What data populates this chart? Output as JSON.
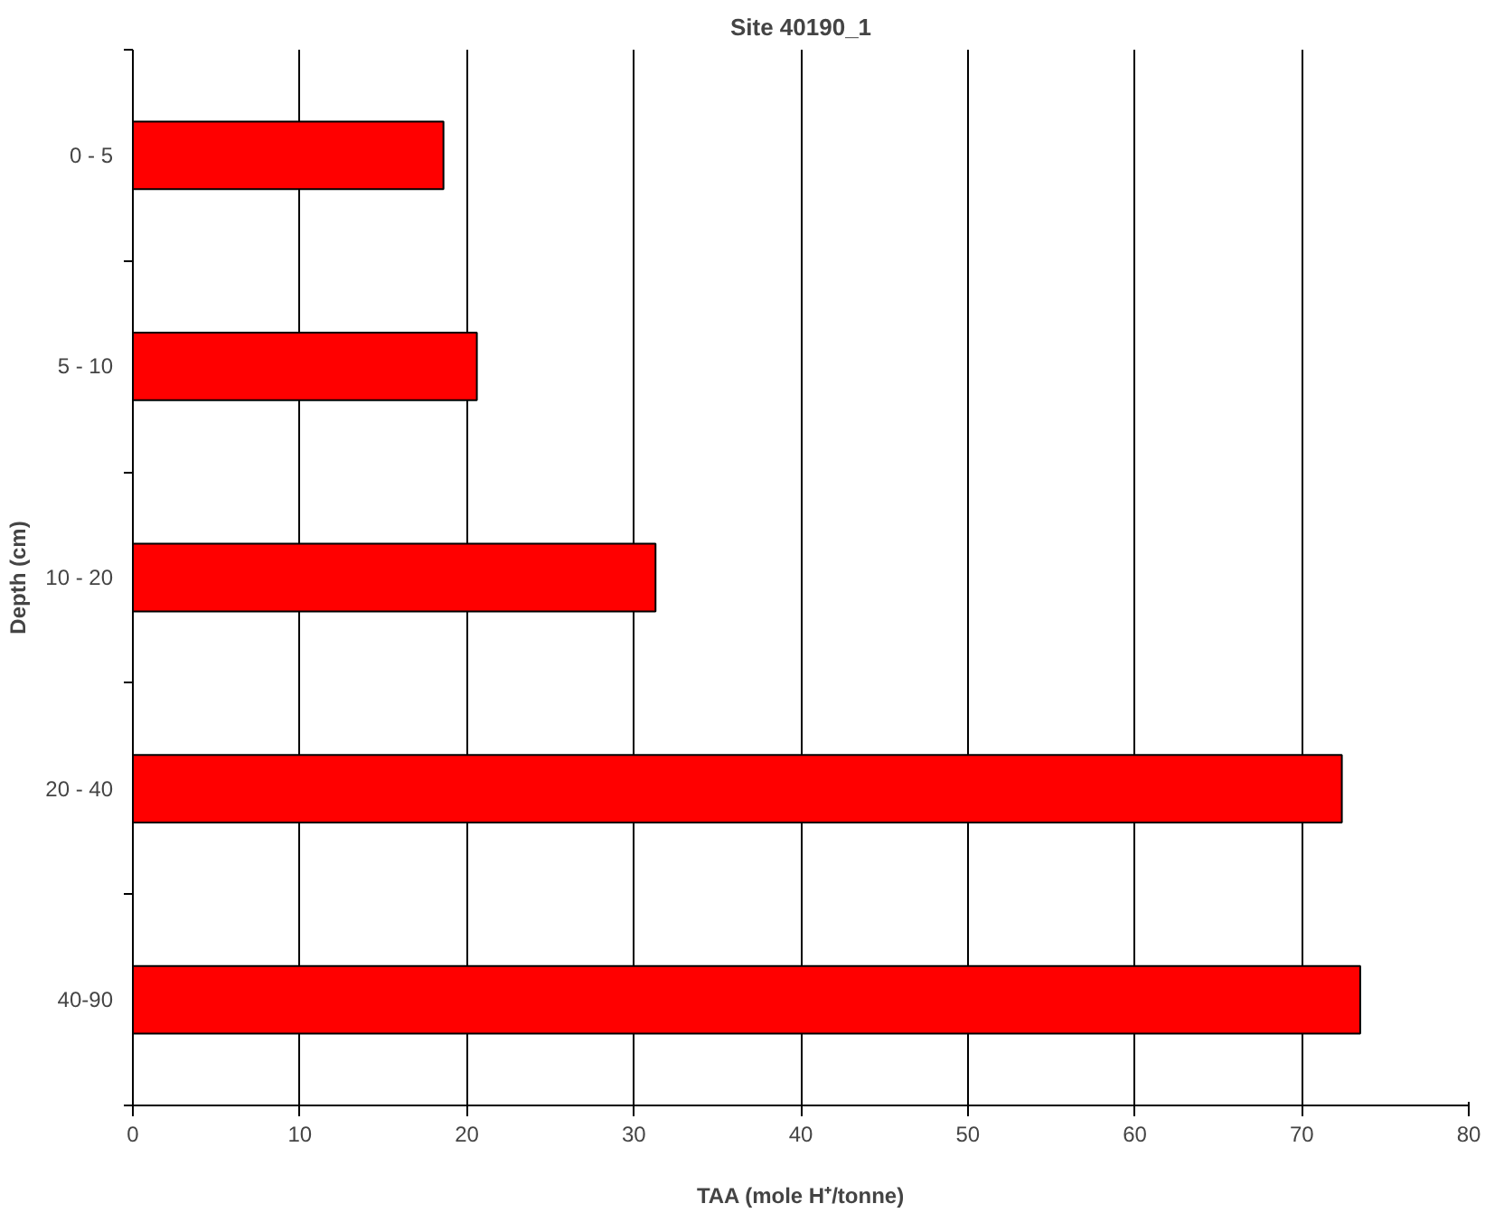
{
  "chart_data": {
    "type": "bar",
    "orientation": "horizontal",
    "title": "Site 40190_1",
    "xlabel": "TAA (mole H⁺/tonne)",
    "ylabel": "Depth (cm)",
    "categories": [
      "0 - 5",
      "5 - 10",
      "10 - 20",
      "20 - 40",
      "40-90"
    ],
    "values": [
      18.6,
      20.6,
      31.3,
      72.4,
      73.5
    ],
    "color": "#ff0000",
    "xlim": [
      0,
      80
    ],
    "xticks": [
      0,
      10,
      20,
      30,
      40,
      50,
      60,
      70,
      80
    ],
    "grid": "x"
  }
}
